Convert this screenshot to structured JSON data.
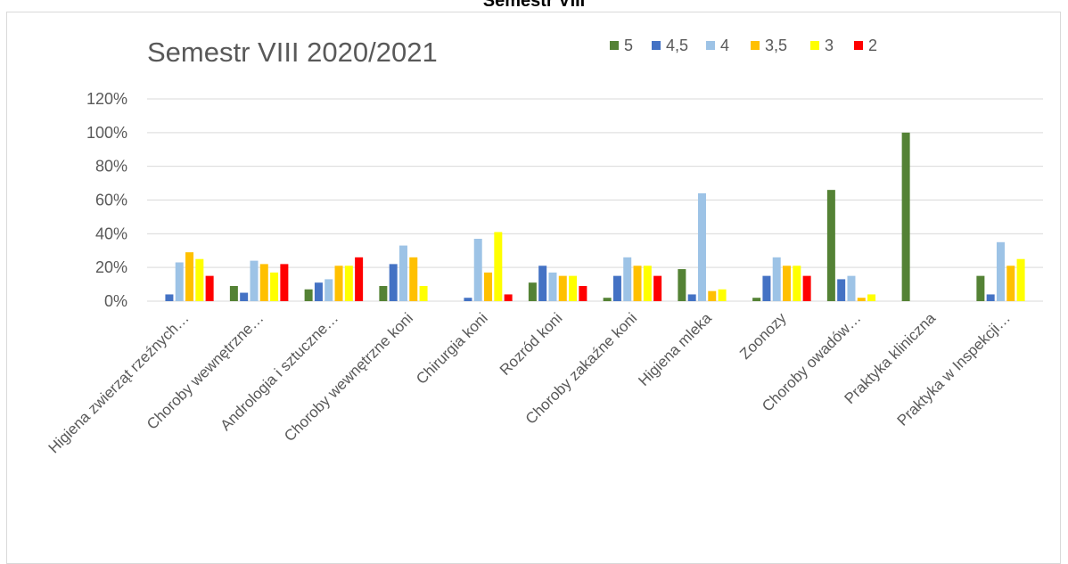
{
  "page_title": "Semestr VIII",
  "chart_data": {
    "type": "bar",
    "title": "Semestr VIII 2020/2021",
    "xlabel": "",
    "ylabel": "",
    "ylim": [
      0,
      1.2
    ],
    "yticks": [
      "0%",
      "20%",
      "40%",
      "60%",
      "80%",
      "100%",
      "120%"
    ],
    "grid": "horizontal",
    "legend_position": "top-right",
    "categories": [
      "Higiena zwierząt rzeźnych…",
      "Choroby wewnętrzne…",
      "Andrologia i sztuczne…",
      "Choroby wewnętrzne koni",
      "Chirurgia koni",
      "Rozród koni",
      "Choroby zakaźne koni",
      "Higiena mleka",
      "Zoonozy",
      "Choroby owadów…",
      "Praktyka kliniczna",
      "Praktyka w Inspekcji…"
    ],
    "series": [
      {
        "name": "5",
        "color": "#548235",
        "values": [
          0,
          0.09,
          0.07,
          0.09,
          0,
          0.11,
          0.02,
          0.19,
          0.02,
          0.66,
          1.0,
          0.15
        ]
      },
      {
        "name": "4,5",
        "color": "#4472c4",
        "values": [
          0.04,
          0.05,
          0.11,
          0.22,
          0.02,
          0.21,
          0.15,
          0.04,
          0.15,
          0.13,
          0,
          0.04
        ]
      },
      {
        "name": "4",
        "color": "#9dc3e6",
        "values": [
          0.23,
          0.24,
          0.13,
          0.33,
          0.37,
          0.17,
          0.26,
          0.64,
          0.26,
          0.15,
          0,
          0.35
        ]
      },
      {
        "name": "3,5",
        "color": "#ffc000",
        "values": [
          0.29,
          0.22,
          0.21,
          0.26,
          0.17,
          0.15,
          0.21,
          0.06,
          0.21,
          0.02,
          0,
          0.21
        ]
      },
      {
        "name": "3",
        "color": "#ffff00",
        "values": [
          0.25,
          0.17,
          0.21,
          0.09,
          0.41,
          0.15,
          0.21,
          0.07,
          0.21,
          0.04,
          0,
          0.25
        ]
      },
      {
        "name": "2",
        "color": "#ff0000",
        "values": [
          0.15,
          0.22,
          0.26,
          0,
          0.04,
          0.09,
          0.15,
          0,
          0.15,
          0,
          0,
          0
        ]
      }
    ]
  }
}
